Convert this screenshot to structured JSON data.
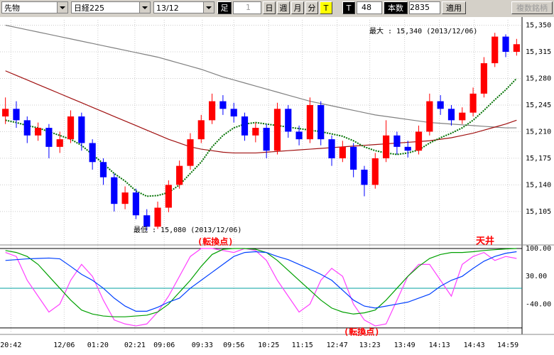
{
  "toolbar": {
    "market": "先物",
    "index": "日経225",
    "month": "13/12",
    "foot": "足",
    "foot_value": "1",
    "day": "日",
    "week": "週",
    "month_btn": "月",
    "minute": "分",
    "tick": "T",
    "t_label": "T",
    "t_value": "48",
    "bars_label": "本数",
    "bars_value": "2835",
    "apply": "適用",
    "compare": "複数銘柄"
  },
  "chart_data": [
    {
      "type": "candlestick",
      "open": [
        15230,
        15240,
        15225,
        15205,
        15215,
        15190,
        15200,
        15230,
        15195,
        15170,
        15150,
        15115,
        15130,
        15100,
        15085,
        15110,
        15140,
        15165,
        15200,
        15225,
        15250,
        15240,
        15230,
        15205,
        15215,
        15185,
        15240,
        15210,
        15200,
        15245,
        15200,
        15175,
        15190,
        15160,
        15140,
        15175,
        15205,
        15190,
        15185,
        15210,
        15250,
        15240,
        15225,
        15235,
        15260,
        15300,
        15335,
        15315
      ],
      "high": [
        15255,
        15250,
        15230,
        15222,
        15220,
        15210,
        15238,
        15235,
        15200,
        15175,
        15155,
        15138,
        15135,
        15108,
        15118,
        15146,
        15172,
        15208,
        15232,
        15260,
        15258,
        15248,
        15235,
        15222,
        15220,
        15248,
        15245,
        15218,
        15255,
        15250,
        15205,
        15198,
        15195,
        15165,
        15182,
        15225,
        15210,
        15198,
        15218,
        15260,
        15258,
        15245,
        15242,
        15268,
        15308,
        15340,
        15338,
        15332
      ],
      "low": [
        15220,
        15215,
        15195,
        15198,
        15175,
        15182,
        15195,
        15185,
        15160,
        15140,
        15105,
        15108,
        15095,
        15080,
        15082,
        15104,
        15135,
        15160,
        15195,
        15220,
        15232,
        15222,
        15198,
        15196,
        15175,
        15180,
        15202,
        15192,
        15195,
        15192,
        15165,
        15170,
        15150,
        15125,
        15135,
        15170,
        15180,
        15176,
        15180,
        15205,
        15232,
        15218,
        15220,
        15230,
        15255,
        15295,
        15308,
        15310
      ],
      "close": [
        15240,
        15225,
        15205,
        15215,
        15190,
        15200,
        15230,
        15195,
        15170,
        15150,
        15115,
        15130,
        15100,
        15085,
        15110,
        15140,
        15165,
        15200,
        15225,
        15250,
        15240,
        15230,
        15205,
        15215,
        15185,
        15240,
        15210,
        15200,
        15245,
        15200,
        15175,
        15190,
        15160,
        15140,
        15175,
        15205,
        15190,
        15185,
        15210,
        15250,
        15240,
        15225,
        15235,
        15260,
        15300,
        15335,
        15315,
        15325
      ],
      "up_color": "#ff0000",
      "down_color": "#0000ff",
      "series": [
        {
          "color": "#808080",
          "style": "solid",
          "values": [
            15350,
            15347,
            15344,
            15341,
            15338,
            15335,
            15332,
            15329,
            15326,
            15323,
            15320,
            15317,
            15314,
            15311,
            15308,
            15304,
            15300,
            15296,
            15292,
            15287,
            15282,
            15278,
            15274,
            15270,
            15266,
            15262,
            15258,
            15254,
            15250,
            15247,
            15244,
            15241,
            15238,
            15235,
            15232,
            15230,
            15228,
            15226,
            15224,
            15222,
            15221,
            15220,
            15219,
            15218,
            15217,
            15216,
            15215,
            15215
          ]
        },
        {
          "color": "#a01010",
          "style": "solid",
          "values": [
            15290,
            15284,
            15278,
            15272,
            15266,
            15260,
            15254,
            15248,
            15242,
            15236,
            15230,
            15224,
            15218,
            15212,
            15206,
            15200,
            15195,
            15190,
            15187,
            15185,
            15183,
            15182,
            15182,
            15182,
            15183,
            15184,
            15185,
            15186,
            15187,
            15188,
            15189,
            15190,
            15191,
            15192,
            15193,
            15194,
            15195,
            15196,
            15197,
            15198,
            15200,
            15202,
            15205,
            15208,
            15212,
            15216,
            15220,
            15225
          ]
        },
        {
          "color": "#007000",
          "style": "dotted",
          "values": [
            15225,
            15222,
            15218,
            15215,
            15210,
            15205,
            15200,
            15192,
            15180,
            15168,
            15155,
            15145,
            15132,
            15125,
            15126,
            15130,
            15140,
            15155,
            15170,
            15190,
            15205,
            15215,
            15220,
            15222,
            15220,
            15218,
            15216,
            15214,
            15212,
            15210,
            15207,
            15204,
            15198,
            15190,
            15185,
            15182,
            15180,
            15182,
            15186,
            15195,
            15202,
            15208,
            15215,
            15225,
            15238,
            15252,
            15265,
            15280
          ]
        }
      ],
      "xlim": [
        -0.5,
        47.5
      ],
      "xticks": [
        {
          "value": 0.5,
          "label": "20:42"
        },
        {
          "value": 5.4,
          "label": "12/06"
        },
        {
          "value": 8.5,
          "label": "01:20"
        },
        {
          "value": 11.9,
          "label": "02:21"
        },
        {
          "value": 14.6,
          "label": "09:06"
        },
        {
          "value": 18.1,
          "label": "09:33"
        },
        {
          "value": 21,
          "label": "09:56"
        },
        {
          "value": 24.2,
          "label": "10:25"
        },
        {
          "value": 27.3,
          "label": "11:15"
        },
        {
          "value": 30.5,
          "label": "12:47"
        },
        {
          "value": 33.5,
          "label": "13:23"
        },
        {
          "value": 36.7,
          "label": "13:49"
        },
        {
          "value": 39.9,
          "label": "14:13"
        },
        {
          "value": 43.1,
          "label": "14:43"
        },
        {
          "value": 46.2,
          "label": "14:59"
        }
      ],
      "ylim": [
        15061,
        15357
      ],
      "yticks": [
        {
          "value": 15105,
          "label": "15,105"
        },
        {
          "value": 15140,
          "label": "15,140"
        },
        {
          "value": 15175,
          "label": "15,175"
        },
        {
          "value": 15210,
          "label": "15,210"
        },
        {
          "value": 15245,
          "label": "15,245"
        },
        {
          "value": 15280,
          "label": "15,280"
        },
        {
          "value": 15315,
          "label": "15,315"
        },
        {
          "value": 15350,
          "label": "15,350"
        }
      ],
      "grid": true,
      "max_label": "最大 : 15,340 (2013/12/06)",
      "min_label": "最低 : 15,080 (2013/12/06)"
    },
    {
      "type": "line",
      "xlim": [
        -0.5,
        47.5
      ],
      "ylim": [
        -111,
        109
      ],
      "yticks": [
        {
          "value": 100,
          "label": "100.00"
        },
        {
          "value": 30,
          "label": "30.00"
        },
        {
          "value": -40,
          "label": "-40.00"
        }
      ],
      "hlines": [
        {
          "value": 100,
          "color": "#000000"
        },
        {
          "value": 0,
          "color": "#00a0a0"
        },
        {
          "value": -100,
          "color": "#000000"
        }
      ],
      "series": [
        {
          "color": "#ff40ff",
          "values": [
            90,
            80,
            20,
            -20,
            -60,
            -40,
            20,
            60,
            30,
            -30,
            -80,
            -90,
            -95,
            -90,
            -60,
            -20,
            30,
            80,
            100,
            100,
            95,
            90,
            100,
            95,
            70,
            20,
            -20,
            -60,
            -40,
            20,
            50,
            30,
            -40,
            -80,
            -95,
            -90,
            -30,
            30,
            60,
            60,
            20,
            -20,
            60,
            80,
            90,
            70,
            80,
            75
          ]
        },
        {
          "color": "#00a000",
          "values": [
            95,
            90,
            80,
            60,
            30,
            0,
            -30,
            -55,
            -65,
            -70,
            -72,
            -72,
            -70,
            -68,
            -60,
            -40,
            -10,
            20,
            55,
            85,
            98,
            100,
            100,
            98,
            90,
            70,
            45,
            20,
            -5,
            -30,
            -50,
            -60,
            -65,
            -62,
            -55,
            -30,
            0,
            30,
            55,
            75,
            85,
            90,
            90,
            92,
            95,
            97,
            99,
            100
          ]
        },
        {
          "color": "#0040ff",
          "values": [
            70,
            72,
            74,
            75,
            76,
            74,
            55,
            35,
            20,
            0,
            -25,
            -45,
            -58,
            -58,
            -48,
            -35,
            -25,
            0,
            20,
            40,
            60,
            80,
            90,
            92,
            90,
            80,
            72,
            60,
            48,
            35,
            20,
            -5,
            -30,
            -45,
            -50,
            -45,
            -40,
            -35,
            -25,
            -15,
            5,
            20,
            30,
            50,
            68,
            80,
            88,
            92
          ]
        }
      ],
      "annotations": [
        "(転換点)",
        "(転換点)",
        "天井"
      ]
    }
  ]
}
